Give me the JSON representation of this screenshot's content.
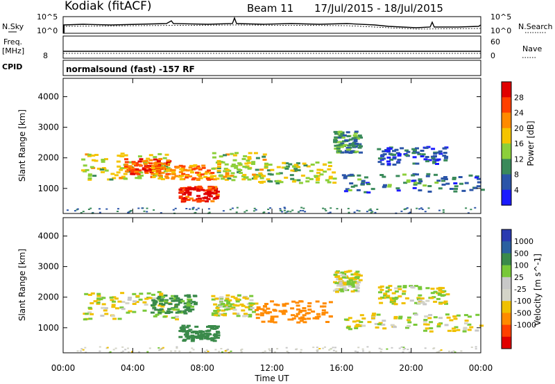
{
  "header": {
    "station": "Kodiak (fitACF)",
    "beam": "Beam 11",
    "dates": "17/Jul/2015 - 18/Jul/2015"
  },
  "top_panels": {
    "nsky_label": "N.Sky",
    "nsky_ticks": [
      "10^5",
      "10^0"
    ],
    "nsearch_label": "N.Search",
    "nsearch_ticks": [
      "10^5",
      "10^0"
    ],
    "freq_label": "Freq.",
    "freq_unit": "[MHz]",
    "freq_ticks": [
      "8"
    ],
    "nave_label": "Nave",
    "nave_ticks": [
      "60",
      "0"
    ],
    "cpid_label": "CPID",
    "cpid_text": "normalsound (fast) -157 RF"
  },
  "time_axis": {
    "ticks": [
      "00:00",
      "04:00",
      "08:00",
      "12:00",
      "16:00",
      "20:00",
      "00:00"
    ],
    "label": "Time UT"
  },
  "colors": {
    "power": [
      "#1a1aff",
      "#2b55a8",
      "#3a8a5a",
      "#8ccf3a",
      "#f5c400",
      "#ff8a00",
      "#ff4000",
      "#e00000"
    ],
    "velocity": [
      "#e00000",
      "#ff4000",
      "#ff8a00",
      "#f0c000",
      "#d4d4c8",
      "#c8c8c8",
      "#78c838",
      "#3a8a4a",
      "#2b60a0",
      "#2a3ab0"
    ]
  },
  "chart_data": [
    {
      "type": "heatmap",
      "name": "power",
      "x_unit": "hours UT",
      "xlim": [
        0,
        24
      ],
      "ylabel": "Slant Range [km]",
      "ylim": [
        180,
        4600
      ],
      "y_ticks": [
        "1000",
        "2000",
        "3000",
        "4000"
      ],
      "colorbar_label": "Power [dB]",
      "colorbar_ticks": [
        "4",
        "8",
        "12",
        "16",
        "20",
        "24",
        "28"
      ],
      "regions": [
        {
          "t": [
            1.0,
            6.0
          ],
          "r": [
            1300,
            2200
          ],
          "db": 16
        },
        {
          "t": [
            3.5,
            6.0
          ],
          "r": [
            1500,
            2000
          ],
          "db": 26
        },
        {
          "t": [
            5.0,
            8.5
          ],
          "r": [
            1300,
            1800
          ],
          "db": 22
        },
        {
          "t": [
            6.6,
            8.8
          ],
          "r": [
            600,
            1100
          ],
          "db": 28
        },
        {
          "t": [
            8.5,
            11.5
          ],
          "r": [
            1300,
            2200
          ],
          "db": 16
        },
        {
          "t": [
            11.0,
            15.5
          ],
          "r": [
            1200,
            1900
          ],
          "db": 14
        },
        {
          "t": [
            15.5,
            17.0
          ],
          "r": [
            2200,
            2900
          ],
          "db": 10
        },
        {
          "t": [
            16.0,
            24.0
          ],
          "r": [
            900,
            1500
          ],
          "db": 8
        },
        {
          "t": [
            18.0,
            22.0
          ],
          "r": [
            1800,
            2400
          ],
          "db": 6
        }
      ]
    },
    {
      "type": "heatmap",
      "name": "velocity",
      "x_unit": "hours UT",
      "xlim": [
        0,
        24
      ],
      "ylabel": "Slant Range [km]",
      "ylim": [
        180,
        4600
      ],
      "y_ticks": [
        "1000",
        "2000",
        "3000",
        "4000"
      ],
      "colorbar_label": "Velocity [m s^-1]",
      "colorbar_ticks": [
        "1000",
        "500",
        "100",
        "25",
        "-25",
        "-100",
        "-500",
        "-1000"
      ],
      "regions": [
        {
          "t": [
            1.0,
            6.5
          ],
          "r": [
            1300,
            2200
          ],
          "v": 0
        },
        {
          "t": [
            5.0,
            7.5
          ],
          "r": [
            1500,
            2100
          ],
          "v": 150
        },
        {
          "t": [
            6.6,
            8.8
          ],
          "r": [
            600,
            1100
          ],
          "v": 400
        },
        {
          "t": [
            8.5,
            11.0
          ],
          "r": [
            1400,
            2100
          ],
          "v": 0
        },
        {
          "t": [
            11.0,
            15.5
          ],
          "r": [
            1200,
            1900
          ],
          "v": -300
        },
        {
          "t": [
            15.5,
            17.0
          ],
          "r": [
            2200,
            2900
          ],
          "v": 0
        },
        {
          "t": [
            16.0,
            24.0
          ],
          "r": [
            900,
            1500
          ],
          "v": 0
        },
        {
          "t": [
            18.0,
            22.0
          ],
          "r": [
            1800,
            2400
          ],
          "v": 0
        }
      ]
    }
  ]
}
